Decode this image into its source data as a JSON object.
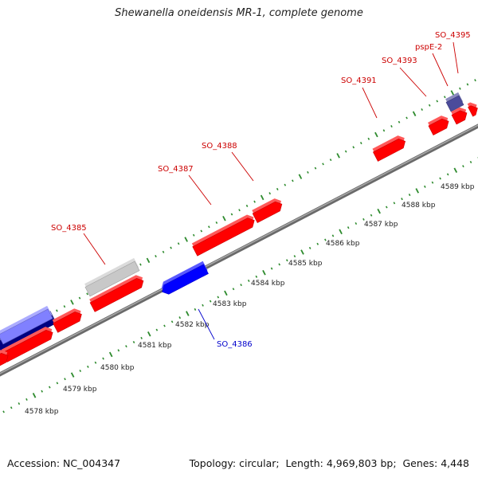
{
  "title": "Shewanella oneidensis MR-1, complete genome",
  "footer": {
    "accession_label": "Accession:",
    "accession": "NC_004347",
    "topology_label": "Topology:",
    "topology": "circular",
    "length_label": "Length:",
    "length": "4,969,803 bp",
    "genes_label": "Genes:",
    "genes": "4,448"
  },
  "colors": {
    "forward_gene": "#ff0000",
    "reverse_gene": "#0000ff",
    "dark_gene": "#000080",
    "pale_gene": "#8080ff",
    "gray_gene": "#c8c8c8",
    "backbone": "#8a8a8a",
    "tick": "#2e8b2e",
    "forward_label": "#cc0000",
    "reverse_label": "#0000cc"
  },
  "ruler": {
    "unit": "kbp",
    "ticks": [
      {
        "label": "4578 kbp"
      },
      {
        "label": "4579 kbp"
      },
      {
        "label": "4580 kbp"
      },
      {
        "label": "4581 kbp"
      },
      {
        "label": "4582 kbp"
      },
      {
        "label": "4583 kbp"
      },
      {
        "label": "4584 kbp"
      },
      {
        "label": "4585 kbp"
      },
      {
        "label": "4586 kbp"
      },
      {
        "label": "4587 kbp"
      },
      {
        "label": "4588 kbp"
      },
      {
        "label": "4589 kbp"
      }
    ]
  },
  "gene_labels": [
    {
      "name": "SO_4385",
      "strand": "forward"
    },
    {
      "name": "SO_4386",
      "strand": "reverse"
    },
    {
      "name": "SO_4387",
      "strand": "forward"
    },
    {
      "name": "SO_4388",
      "strand": "forward"
    },
    {
      "name": "SO_4391",
      "strand": "forward"
    },
    {
      "name": "SO_4393",
      "strand": "forward"
    },
    {
      "name": "pspE-2",
      "strand": "forward"
    },
    {
      "name": "SO_4395",
      "strand": "forward"
    }
  ]
}
